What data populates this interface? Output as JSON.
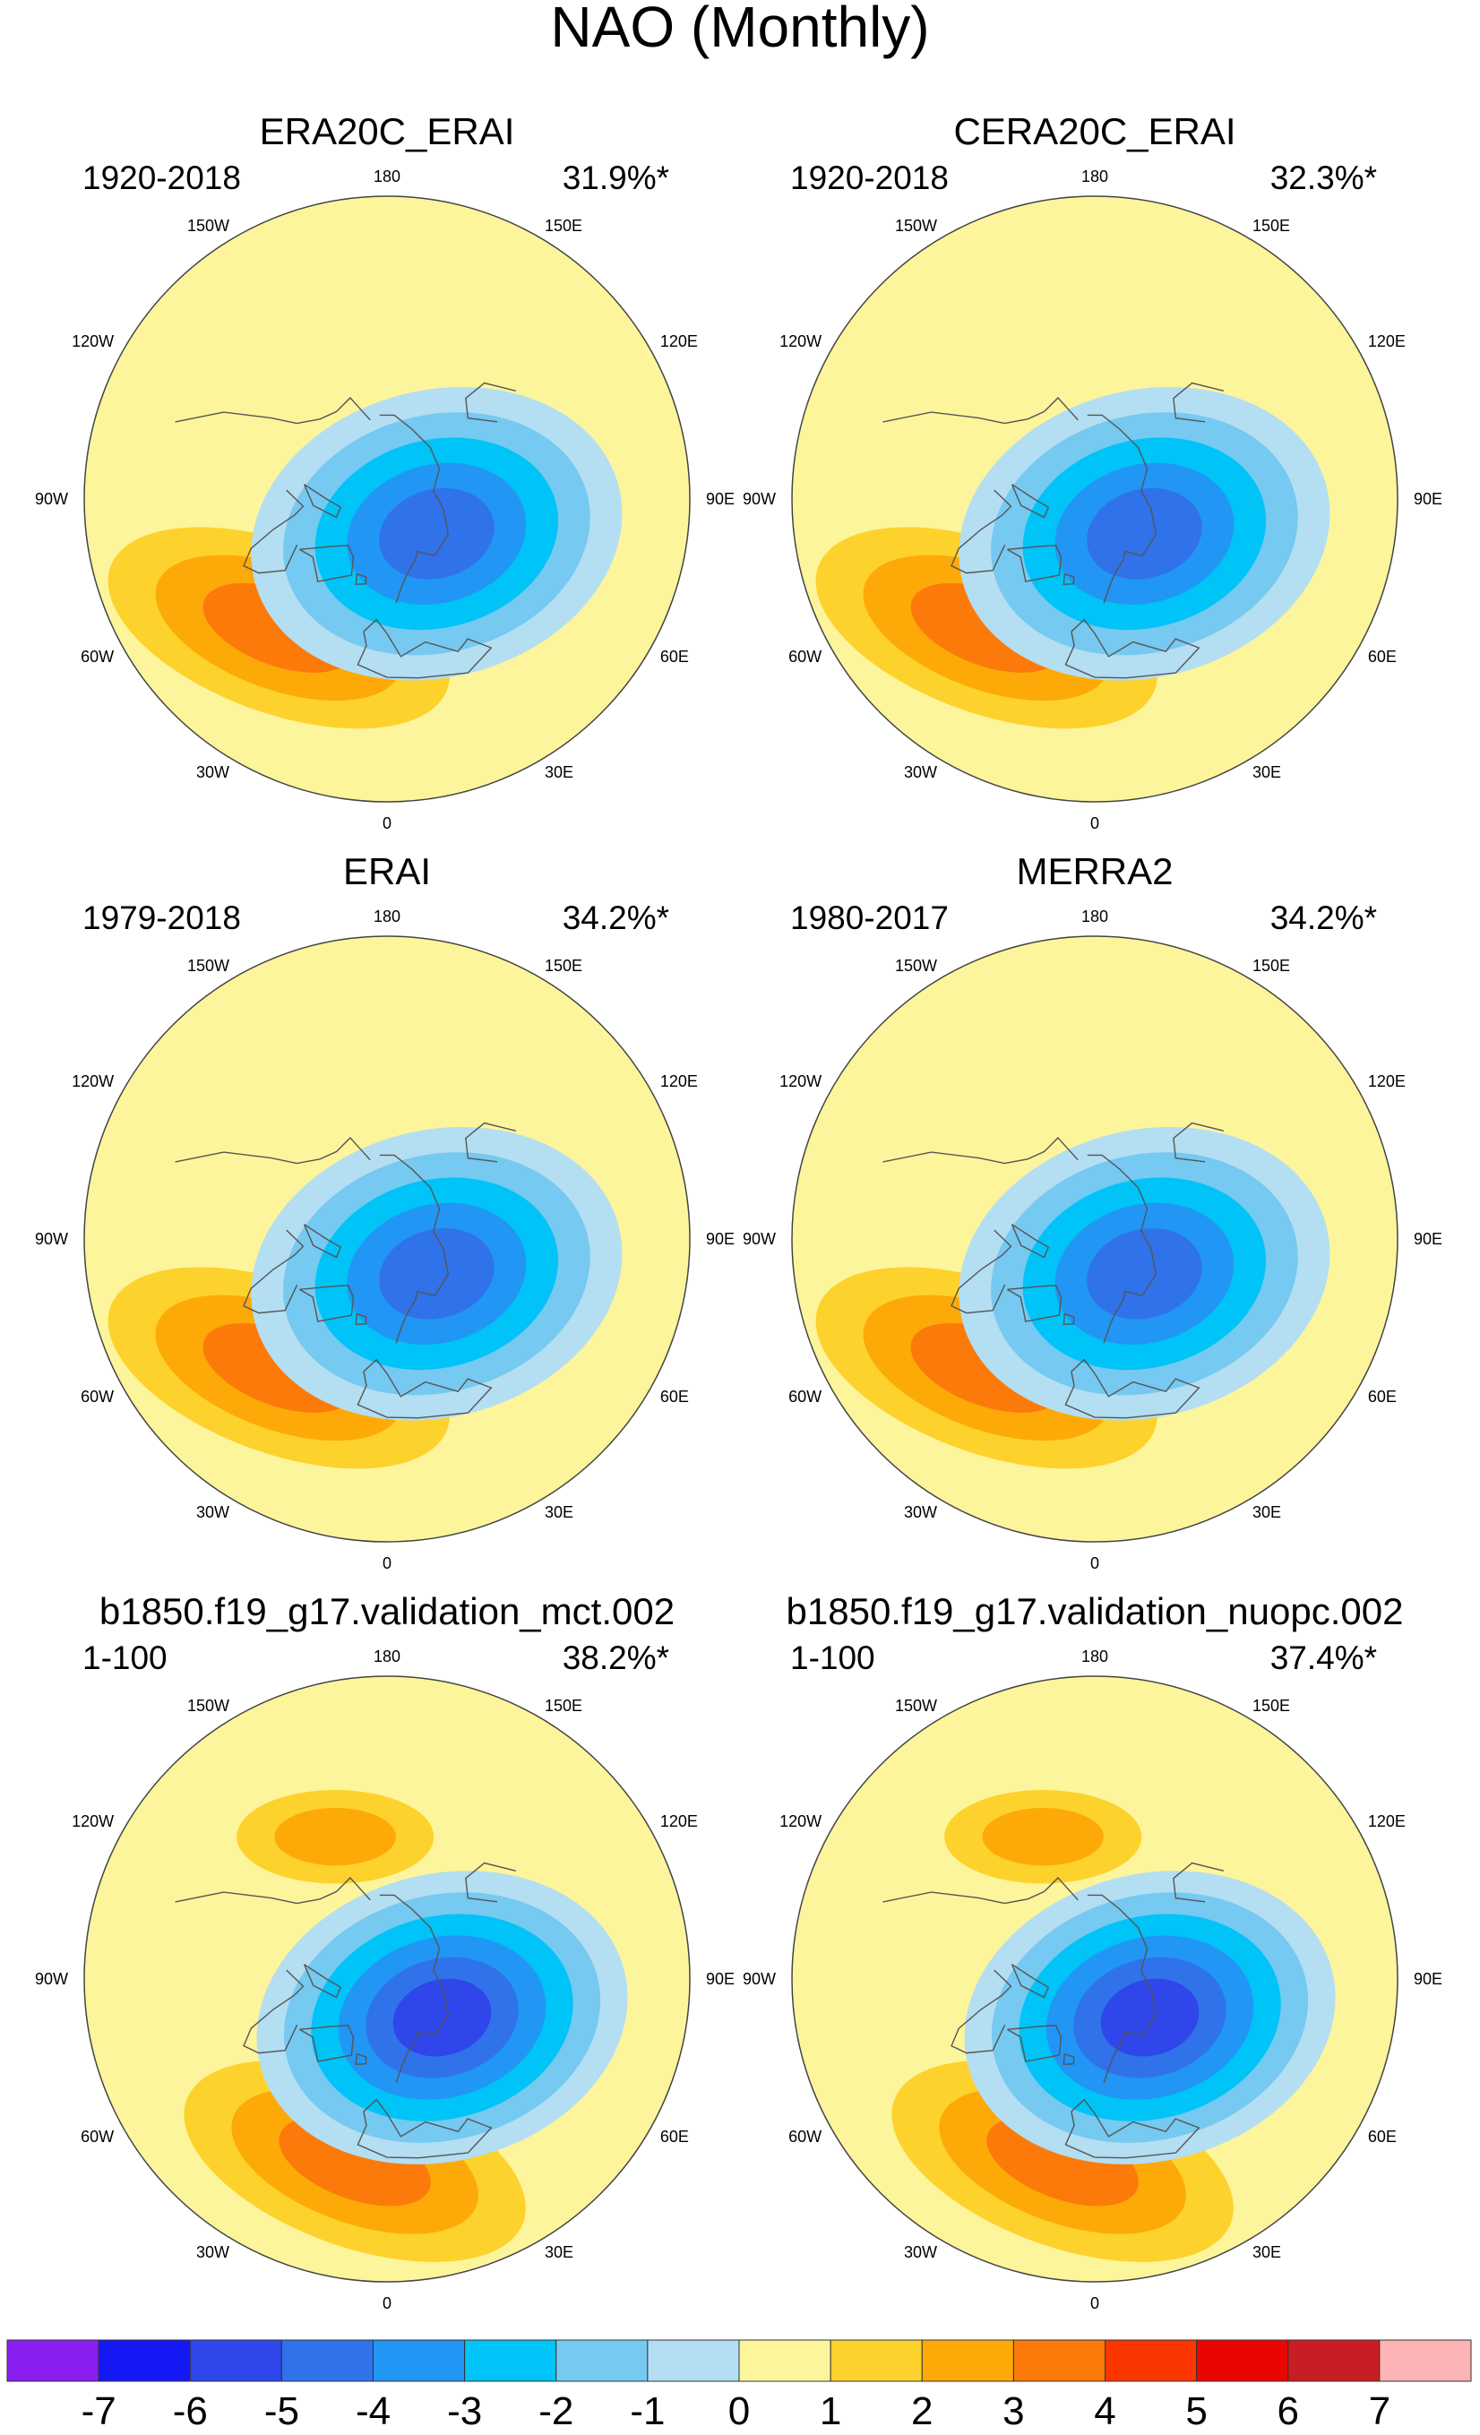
{
  "figure": {
    "title": "NAO (Monthly)",
    "colors": {
      "neg": [
        "#8a1ef0",
        "#1418f5",
        "#2e46ea",
        "#3072ea",
        "#2196f5",
        "#00c3f7",
        "#76c9f0",
        "#b4def2"
      ],
      "pos": [
        "#fdf59c",
        "#fdd22c",
        "#fdaa08",
        "#fc7a0a",
        "#fc3600",
        "#ea0600",
        "#c81d22",
        "#fbb3b5"
      ],
      "coast": "#555555",
      "map_edge": "#444444"
    },
    "longitude_labels": [
      "180",
      "150E",
      "120E",
      "90E",
      "60E",
      "30E",
      "0",
      "30W",
      "60W",
      "90W",
      "120W",
      "150W"
    ]
  },
  "colorbar": {
    "levels": [
      -7,
      -6,
      -5,
      -4,
      -3,
      -2,
      -1,
      0,
      1,
      2,
      3,
      4,
      5,
      6,
      7
    ],
    "tick_labels": [
      "-7",
      "-6",
      "-5",
      "-4",
      "-3",
      "-2",
      "-1",
      "0",
      "1",
      "2",
      "3",
      "4",
      "5",
      "6",
      "7"
    ],
    "n_boxes": 16
  },
  "chart_data": [
    {
      "type": "heatmap",
      "title": "ERA20C_ERAI",
      "period": "1920-2018",
      "pct_variance": "31.9%*",
      "centers": [
        {
          "name": "arctic-low",
          "lon": 55,
          "colat": 18,
          "value": -5.6
        },
        {
          "name": "atlantic-high",
          "lon": -40,
          "colat": 50,
          "value": 3.6
        }
      ]
    },
    {
      "type": "heatmap",
      "title": "CERA20C_ERAI",
      "period": "1920-2018",
      "pct_variance": "32.3%*",
      "centers": [
        {
          "name": "arctic-low",
          "lon": 55,
          "colat": 18,
          "value": -5.5
        },
        {
          "name": "atlantic-high",
          "lon": -40,
          "colat": 50,
          "value": 3.4
        }
      ]
    },
    {
      "type": "heatmap",
      "title": "ERAI",
      "period": "1979-2018",
      "pct_variance": "34.2%*",
      "centers": [
        {
          "name": "arctic-low",
          "lon": 55,
          "colat": 18,
          "value": -5.5
        },
        {
          "name": "atlantic-high",
          "lon": -40,
          "colat": 50,
          "value": 3.5
        }
      ]
    },
    {
      "type": "heatmap",
      "title": "MERRA2",
      "period": "1980-2017",
      "pct_variance": "34.2%*",
      "centers": [
        {
          "name": "arctic-low",
          "lon": 55,
          "colat": 18,
          "value": -5.4
        },
        {
          "name": "atlantic-high",
          "lon": -40,
          "colat": 50,
          "value": 3.4
        }
      ]
    },
    {
      "type": "heatmap",
      "title": "b1850.f19_g17.validation_mct.002",
      "period": "1-100",
      "pct_variance": "38.2%*",
      "centers": [
        {
          "name": "arctic-low",
          "lon": 55,
          "colat": 20,
          "value": -6.2
        },
        {
          "name": "atlantic-high",
          "lon": -10,
          "colat": 55,
          "value": 3.9
        },
        {
          "name": "pacific-high",
          "lon": -160,
          "colat": 45,
          "value": 2.3
        }
      ]
    },
    {
      "type": "heatmap",
      "title": "b1850.f19_g17.validation_nuopc.002",
      "period": "1-100",
      "pct_variance": "37.4%*",
      "centers": [
        {
          "name": "arctic-low",
          "lon": 55,
          "colat": 20,
          "value": -6.0
        },
        {
          "name": "atlantic-high",
          "lon": -10,
          "colat": 55,
          "value": 3.8
        },
        {
          "name": "pacific-high",
          "lon": -160,
          "colat": 45,
          "value": 2.3
        }
      ]
    }
  ]
}
